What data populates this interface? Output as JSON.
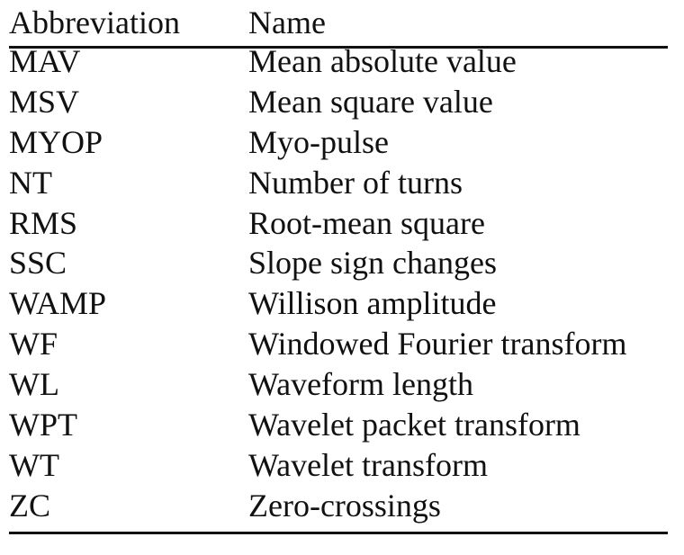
{
  "table": {
    "headers": {
      "abbreviation": "Abbreviation",
      "name": "Name"
    },
    "rows": [
      {
        "abbreviation": "MAV",
        "name": "Mean absolute value"
      },
      {
        "abbreviation": "MSV",
        "name": "Mean square value"
      },
      {
        "abbreviation": "MYOP",
        "name": "Myo-pulse"
      },
      {
        "abbreviation": "NT",
        "name": "Number of turns"
      },
      {
        "abbreviation": "RMS",
        "name": "Root-mean square"
      },
      {
        "abbreviation": "SSC",
        "name": "Slope sign changes"
      },
      {
        "abbreviation": "WAMP",
        "name": "Willison amplitude"
      },
      {
        "abbreviation": "WF",
        "name": "Windowed Fourier transform"
      },
      {
        "abbreviation": "WL",
        "name": "Waveform length"
      },
      {
        "abbreviation": "WPT",
        "name": "Wavelet packet transform"
      },
      {
        "abbreviation": "WT",
        "name": "Wavelet transform"
      },
      {
        "abbreviation": "ZC",
        "name": "Zero-crossings"
      }
    ]
  }
}
